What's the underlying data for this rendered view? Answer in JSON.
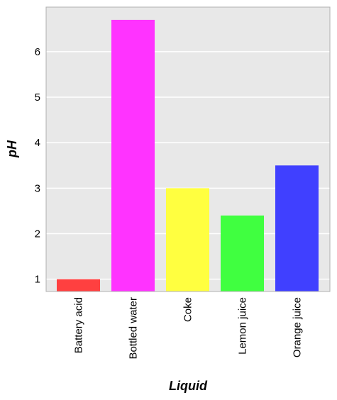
{
  "chart_data": {
    "type": "bar",
    "categories": [
      "Battery acid",
      "Bottled water",
      "Coke",
      "Lemon juice",
      "Orange juice"
    ],
    "values": [
      1.0,
      6.7,
      3.0,
      2.4,
      3.5
    ],
    "colors": [
      "#ff4040",
      "#ff33ff",
      "#ffff40",
      "#40ff40",
      "#4040ff"
    ],
    "title": "",
    "xlabel": "Liquid",
    "ylabel": "pH",
    "ylim": [
      0.73,
      6.98
    ],
    "yticks": [
      1,
      2,
      3,
      4,
      5,
      6
    ],
    "grid": true,
    "background": "#e8e8e8"
  }
}
